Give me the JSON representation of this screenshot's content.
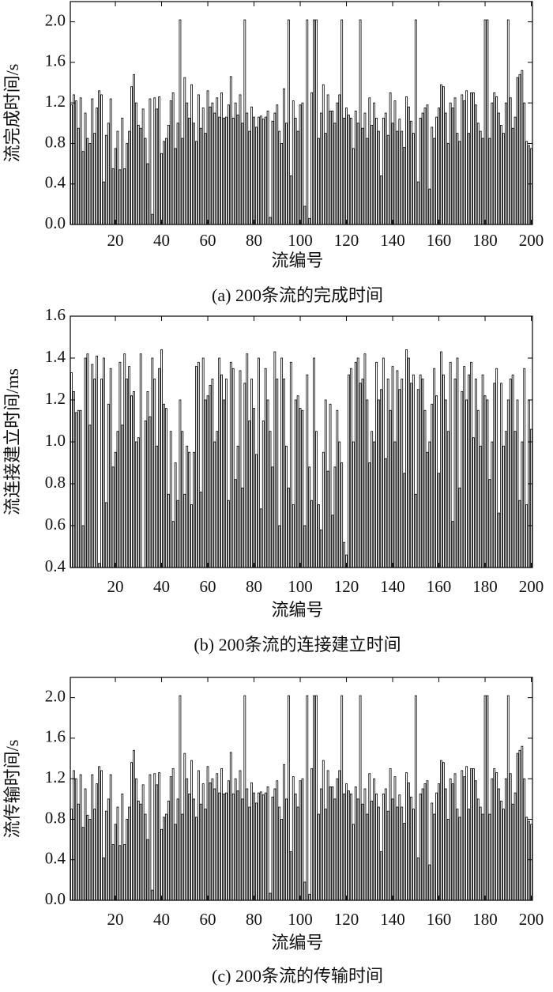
{
  "chart_data": [
    {
      "type": "bar",
      "title": "(a) 200条流的完成时间",
      "xlabel": "流编号",
      "ylabel": "流完成时间/s",
      "color": "#ffffff",
      "x": [
        1,
        2,
        3,
        4,
        5,
        6,
        7,
        8,
        9,
        10,
        11,
        12,
        13,
        14,
        15,
        16,
        17,
        18,
        19,
        20,
        21,
        22,
        23,
        24,
        25,
        26,
        27,
        28,
        29,
        30,
        31,
        32,
        33,
        34,
        35,
        36,
        37,
        38,
        39,
        40,
        41,
        42,
        43,
        44,
        45,
        46,
        47,
        48,
        49,
        50,
        51,
        52,
        53,
        54,
        55,
        56,
        57,
        58,
        59,
        60,
        61,
        62,
        63,
        64,
        65,
        66,
        67,
        68,
        69,
        70,
        71,
        72,
        73,
        74,
        75,
        76,
        77,
        78,
        79,
        80,
        81,
        82,
        83,
        84,
        85,
        86,
        87,
        88,
        89,
        90,
        91,
        92,
        93,
        94,
        95,
        96,
        97,
        98,
        99,
        100,
        101,
        102,
        103,
        104,
        105,
        106,
        107,
        108,
        109,
        110,
        111,
        112,
        113,
        114,
        115,
        116,
        117,
        118,
        119,
        120,
        121,
        122,
        123,
        124,
        125,
        126,
        127,
        128,
        129,
        130,
        131,
        132,
        133,
        134,
        135,
        136,
        137,
        138,
        139,
        140,
        141,
        142,
        143,
        144,
        145,
        146,
        147,
        148,
        149,
        150,
        151,
        152,
        153,
        154,
        155,
        156,
        157,
        158,
        159,
        160,
        161,
        162,
        163,
        164,
        165,
        166,
        167,
        168,
        169,
        170,
        171,
        172,
        173,
        174,
        175,
        176,
        177,
        178,
        179,
        180,
        181,
        182,
        183,
        184,
        185,
        186,
        187,
        188,
        189,
        190,
        191,
        192,
        193,
        194,
        195,
        196,
        197,
        198,
        199,
        200
      ],
      "values": [
        1.18,
        1.28,
        1.22,
        0.95,
        1.25,
        0.72,
        1.1,
        0.85,
        0.8,
        1.24,
        0.9,
        1.15,
        1.32,
        1.28,
        0.42,
        0.88,
        1.0,
        1.24,
        0.55,
        0.75,
        0.92,
        0.54,
        1.05,
        0.55,
        0.8,
        0.92,
        1.36,
        1.48,
        1.2,
        0.98,
        0.95,
        1.14,
        0.85,
        0.6,
        1.24,
        0.1,
        1.25,
        1.14,
        1.26,
        0.7,
        0.82,
        0.85,
        0.98,
        1.22,
        1.3,
        0.75,
        1.0,
        2.02,
        0.85,
        1.45,
        1.2,
        1.05,
        1.38,
        1.0,
        0.82,
        1.28,
        0.95,
        1.15,
        0.9,
        1.32,
        1.16,
        1.2,
        1.1,
        1.25,
        1.06,
        1.3,
        1.05,
        1.06,
        1.18,
        1.46,
        1.05,
        1.2,
        1.08,
        1.28,
        1.0,
        2.02,
        1.1,
        0.92,
        1.16,
        1.06,
        0.96,
        1.06,
        1.07,
        1.04,
        1.06,
        1.12,
        0.07,
        1.02,
        1.1,
        1.18,
        0.92,
        0.8,
        1.34,
        1.0,
        2.02,
        0.48,
        1.22,
        1.05,
        0.92,
        1.18,
        1.2,
        0.18,
        2.02,
        0.06,
        1.3,
        2.02,
        2.02,
        0.85,
        1.1,
        1.38,
        0.9,
        1.28,
        1.12,
        1.12,
        1.0,
        1.2,
        1.28,
        2.02,
        1.05,
        1.15,
        1.08,
        1.05,
        0.75,
        1.12,
        1.0,
        2.02,
        0.95,
        1.1,
        0.85,
        1.25,
        0.98,
        1.2,
        1.05,
        0.92,
        0.48,
        1.05,
        1.1,
        0.88,
        1.3,
        1.0,
        1.22,
        0.92,
        1.04,
        0.92,
        0.76,
        1.26,
        1.16,
        1.02,
        0.9,
        2.02,
        0.42,
        1.05,
        1.1,
        1.15,
        1.18,
        0.35,
        0.96,
        0.85,
        1.06,
        1.15,
        1.38,
        1.36,
        1.1,
        0.8,
        1.2,
        1.15,
        1.25,
        0.9,
        0.82,
        1.28,
        1.22,
        1.32,
        0.9,
        1.3,
        1.3,
        1.18,
        1.0,
        0.92,
        0.85,
        2.02,
        2.02,
        0.85,
        1.2,
        1.3,
        1.26,
        1.1,
        0.98,
        0.9,
        1.2,
        2.02,
        1.25,
        0.95,
        1.06,
        1.45,
        1.48,
        1.52,
        1.2,
        0.82,
        0.78,
        0.75
      ],
      "xlim": [
        0.5,
        200.5
      ],
      "xticks": [
        20,
        40,
        60,
        80,
        100,
        120,
        140,
        160,
        180,
        200
      ],
      "ylim": [
        0,
        2.2
      ],
      "yticks": [
        {
          "value": 0,
          "label": "0.0"
        },
        0.4,
        0.8,
        1.2,
        1.6,
        {
          "value": 2,
          "label": "2.0"
        }
      ]
    },
    {
      "type": "bar",
      "title": "(b) 200条流的连接建立时间",
      "xlabel": "流编号",
      "ylabel": "流连接建立时间/ms",
      "color": "#ffffff",
      "x": [
        1,
        2,
        3,
        4,
        5,
        6,
        7,
        8,
        9,
        10,
        11,
        12,
        13,
        14,
        15,
        16,
        17,
        18,
        19,
        20,
        21,
        22,
        23,
        24,
        25,
        26,
        27,
        28,
        29,
        30,
        31,
        32,
        33,
        34,
        35,
        36,
        37,
        38,
        39,
        40,
        41,
        42,
        43,
        44,
        45,
        46,
        47,
        48,
        49,
        50,
        51,
        52,
        53,
        54,
        55,
        56,
        57,
        58,
        59,
        60,
        61,
        62,
        63,
        64,
        65,
        66,
        67,
        68,
        69,
        70,
        71,
        72,
        73,
        74,
        75,
        76,
        77,
        78,
        79,
        80,
        81,
        82,
        83,
        84,
        85,
        86,
        87,
        88,
        89,
        90,
        91,
        92,
        93,
        94,
        95,
        96,
        97,
        98,
        99,
        100,
        101,
        102,
        103,
        104,
        105,
        106,
        107,
        108,
        109,
        110,
        111,
        112,
        113,
        114,
        115,
        116,
        117,
        118,
        119,
        120,
        121,
        122,
        123,
        124,
        125,
        126,
        127,
        128,
        129,
        130,
        131,
        132,
        133,
        134,
        135,
        136,
        137,
        138,
        139,
        140,
        141,
        142,
        143,
        144,
        145,
        146,
        147,
        148,
        149,
        150,
        151,
        152,
        153,
        154,
        155,
        156,
        157,
        158,
        159,
        160,
        161,
        162,
        163,
        164,
        165,
        166,
        167,
        168,
        169,
        170,
        171,
        172,
        173,
        174,
        175,
        176,
        177,
        178,
        179,
        180,
        181,
        182,
        183,
        184,
        185,
        186,
        187,
        188,
        189,
        190,
        191,
        192,
        193,
        194,
        195,
        196,
        197,
        198,
        199,
        200
      ],
      "values": [
        1.33,
        1.24,
        1.14,
        1.15,
        1.15,
        0.6,
        1.4,
        1.42,
        1.08,
        1.37,
        1.3,
        1.41,
        0.42,
        1.3,
        1.4,
        0.71,
        1.18,
        1.35,
        0.88,
        0.95,
        1.05,
        1.38,
        1.08,
        1.42,
        1.3,
        1.36,
        1.22,
        1.24,
        1.0,
        1.02,
        1.42,
        0.4,
        1.1,
        1.24,
        1.12,
        1.4,
        1.3,
        0.98,
        1.35,
        1.44,
        1.18,
        1.16,
        0.75,
        1.05,
        0.62,
        0.9,
        0.72,
        1.2,
        1.05,
        0.75,
        0.98,
        0.95,
        0.7,
        0.95,
        1.36,
        1.38,
        0.76,
        1.4,
        1.2,
        1.22,
        1.27,
        1.3,
        1.0,
        1.05,
        1.4,
        1.32,
        1.2,
        1.3,
        0.72,
        1.38,
        1.35,
        0.82,
        0.98,
        1.34,
        0.78,
        1.28,
        1.42,
        1.1,
        1.3,
        1.16,
        0.94,
        1.4,
        0.68,
        1.1,
        1.35,
        1.2,
        1.05,
        0.88,
        1.43,
        1.3,
        0.6,
        1.4,
        1.3,
        0.98,
        0.78,
        1.38,
        0.7,
        1.2,
        1.22,
        1.16,
        1.15,
        0.6,
        1.32,
        0.88,
        0.72,
        1.4,
        1.05,
        0.7,
        0.58,
        0.95,
        1.2,
        0.86,
        1.18,
        0.65,
        0.88,
        1.15,
        1.0,
        0.9,
        0.52,
        0.46,
        1.32,
        1.35,
        1.0,
        1.38,
        1.4,
        1.28,
        1.3,
        1.42,
        1.2,
        0.9,
        1.05,
        1.0,
        1.38,
        1.2,
        1.25,
        1.4,
        0.92,
        1.3,
        1.15,
        1.36,
        1.0,
        1.34,
        1.25,
        1.3,
        0.85,
        1.44,
        1.4,
        1.28,
        1.32,
        0.75,
        1.25,
        1.32,
        1.3,
        1.15,
        0.95,
        1.0,
        1.18,
        1.35,
        1.22,
        0.85,
        1.43,
        1.32,
        1.2,
        1.05,
        1.38,
        0.62,
        1.3,
        1.4,
        0.78,
        1.24,
        1.36,
        1.2,
        1.32,
        1.38,
        1.02,
        1.3,
        1.15,
        0.98,
        1.32,
        1.22,
        1.2,
        0.82,
        1.0,
        1.28,
        1.35,
        0.66,
        1.28,
        0.98,
        1.05,
        1.2,
        1.3,
        1.32,
        1.05,
        1.2,
        0.72,
        1.0,
        1.35,
        0.7,
        1.2,
        1.06
      ],
      "xlim": [
        0.5,
        200.5
      ],
      "xticks": [
        20,
        40,
        60,
        80,
        100,
        120,
        140,
        160,
        180,
        200
      ],
      "ylim": [
        0.4,
        1.6
      ],
      "yticks": [
        0.4,
        0.6,
        0.8,
        {
          "value": 1,
          "label": "1.0"
        },
        1.2,
        1.4,
        1.6
      ]
    },
    {
      "type": "bar",
      "title": "(c) 200条流的传输时间",
      "xlabel": "流编号",
      "ylabel": "流传输时间/s",
      "color": "#ffffff",
      "x": [
        1,
        2,
        3,
        4,
        5,
        6,
        7,
        8,
        9,
        10,
        11,
        12,
        13,
        14,
        15,
        16,
        17,
        18,
        19,
        20,
        21,
        22,
        23,
        24,
        25,
        26,
        27,
        28,
        29,
        30,
        31,
        32,
        33,
        34,
        35,
        36,
        37,
        38,
        39,
        40,
        41,
        42,
        43,
        44,
        45,
        46,
        47,
        48,
        49,
        50,
        51,
        52,
        53,
        54,
        55,
        56,
        57,
        58,
        59,
        60,
        61,
        62,
        63,
        64,
        65,
        66,
        67,
        68,
        69,
        70,
        71,
        72,
        73,
        74,
        75,
        76,
        77,
        78,
        79,
        80,
        81,
        82,
        83,
        84,
        85,
        86,
        87,
        88,
        89,
        90,
        91,
        92,
        93,
        94,
        95,
        96,
        97,
        98,
        99,
        100,
        101,
        102,
        103,
        104,
        105,
        106,
        107,
        108,
        109,
        110,
        111,
        112,
        113,
        114,
        115,
        116,
        117,
        118,
        119,
        120,
        121,
        122,
        123,
        124,
        125,
        126,
        127,
        128,
        129,
        130,
        131,
        132,
        133,
        134,
        135,
        136,
        137,
        138,
        139,
        140,
        141,
        142,
        143,
        144,
        145,
        146,
        147,
        148,
        149,
        150,
        151,
        152,
        153,
        154,
        155,
        156,
        157,
        158,
        159,
        160,
        161,
        162,
        163,
        164,
        165,
        166,
        167,
        168,
        169,
        170,
        171,
        172,
        173,
        174,
        175,
        176,
        177,
        178,
        179,
        180,
        181,
        182,
        183,
        184,
        185,
        186,
        187,
        188,
        189,
        190,
        191,
        192,
        193,
        194,
        195,
        196,
        197,
        198,
        199,
        200
      ],
      "values": [
        0.9,
        1.28,
        1.2,
        0.95,
        1.24,
        0.72,
        1.1,
        0.84,
        0.8,
        1.24,
        0.9,
        1.15,
        1.32,
        1.28,
        0.42,
        0.88,
        1.0,
        1.24,
        0.55,
        0.75,
        0.92,
        0.54,
        1.05,
        0.55,
        0.8,
        0.92,
        1.36,
        1.48,
        1.2,
        0.98,
        0.95,
        1.14,
        0.85,
        0.6,
        1.24,
        0.1,
        1.25,
        1.14,
        1.26,
        0.7,
        0.82,
        0.85,
        0.98,
        1.22,
        1.3,
        0.75,
        1.0,
        2.02,
        0.85,
        1.45,
        1.2,
        1.05,
        1.38,
        1.0,
        0.82,
        1.28,
        0.95,
        1.15,
        0.9,
        1.32,
        1.16,
        1.2,
        1.1,
        1.25,
        1.06,
        1.3,
        1.05,
        1.06,
        1.18,
        1.46,
        1.05,
        1.2,
        1.08,
        1.28,
        1.0,
        2.02,
        1.1,
        0.92,
        1.16,
        1.06,
        0.96,
        1.06,
        1.07,
        1.04,
        1.06,
        1.12,
        0.07,
        1.02,
        1.1,
        1.18,
        0.92,
        0.8,
        1.34,
        1.0,
        2.02,
        0.48,
        1.22,
        1.05,
        0.92,
        1.18,
        1.2,
        0.18,
        2.02,
        0.06,
        1.3,
        2.02,
        2.02,
        0.85,
        1.1,
        1.38,
        0.9,
        1.28,
        1.12,
        1.12,
        1.0,
        1.2,
        1.28,
        2.02,
        1.05,
        1.15,
        1.08,
        1.05,
        0.75,
        1.12,
        1.0,
        2.02,
        0.95,
        1.1,
        0.85,
        1.25,
        0.98,
        1.2,
        1.05,
        0.92,
        0.48,
        1.05,
        1.1,
        0.88,
        1.3,
        1.0,
        1.22,
        0.92,
        1.04,
        0.92,
        0.76,
        1.26,
        1.16,
        1.02,
        0.9,
        2.02,
        0.42,
        1.05,
        1.1,
        1.15,
        1.18,
        0.35,
        0.96,
        0.85,
        1.06,
        1.15,
        1.38,
        1.36,
        1.1,
        0.8,
        1.2,
        1.15,
        1.25,
        0.9,
        0.82,
        1.28,
        1.22,
        1.32,
        0.9,
        1.3,
        1.3,
        1.18,
        1.0,
        0.92,
        0.85,
        2.02,
        2.02,
        0.85,
        1.2,
        1.3,
        1.26,
        1.1,
        0.98,
        0.9,
        1.2,
        2.02,
        1.25,
        0.95,
        1.06,
        1.45,
        1.48,
        1.52,
        1.2,
        0.82,
        0.78,
        0.75
      ],
      "xlim": [
        0.5,
        200.5
      ],
      "xticks": [
        20,
        40,
        60,
        80,
        100,
        120,
        140,
        160,
        180,
        200
      ],
      "ylim": [
        0,
        2.2
      ],
      "yticks": [
        {
          "value": 0,
          "label": "0.0"
        },
        0.4,
        0.8,
        1.2,
        1.6,
        {
          "value": 2,
          "label": "2.0"
        }
      ]
    }
  ]
}
